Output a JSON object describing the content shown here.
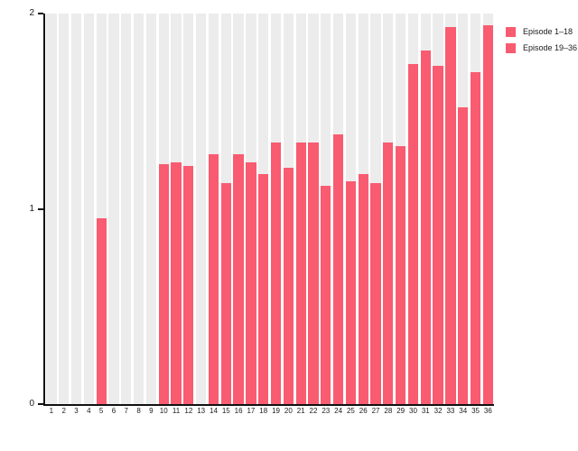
{
  "chart_data": {
    "type": "bar",
    "title": "",
    "xlabel": "",
    "ylabel": "",
    "categories": [
      "1",
      "2",
      "3",
      "4",
      "5",
      "6",
      "7",
      "8",
      "9",
      "10",
      "11",
      "12",
      "13",
      "14",
      "15",
      "16",
      "17",
      "18",
      "19",
      "20",
      "21",
      "22",
      "23",
      "24",
      "25",
      "26",
      "27",
      "28",
      "29",
      "30",
      "31",
      "32",
      "33",
      "34",
      "35",
      "36"
    ],
    "values": [
      null,
      null,
      null,
      null,
      0.95,
      null,
      null,
      null,
      null,
      1.23,
      1.24,
      1.22,
      null,
      1.28,
      1.13,
      1.28,
      1.24,
      1.18,
      1.34,
      1.21,
      1.34,
      1.34,
      1.12,
      1.38,
      1.14,
      1.18,
      1.13,
      1.34,
      1.32,
      1.74,
      1.81,
      1.73,
      1.93,
      1.52,
      1.7,
      1.94
    ],
    "series": [
      {
        "name": "Episode 1–18",
        "color": "#f95b70",
        "category_range": [
          1,
          18
        ]
      },
      {
        "name": "Episode 19–36",
        "color": "#f95b70",
        "category_range": [
          19,
          36
        ]
      }
    ],
    "ylim": [
      0,
      2
    ],
    "yticks": [
      "0",
      "1",
      "2"
    ],
    "grid": false,
    "legend_position": "top-right",
    "background_slot_color": "#ececec",
    "background_slot_full_value": 2,
    "axis_color": "#111111"
  },
  "legend": {
    "entries": [
      {
        "label": "Episode 1–18",
        "color": "#f95b70"
      },
      {
        "label": "Episode 19–36",
        "color": "#f95b70"
      }
    ]
  }
}
